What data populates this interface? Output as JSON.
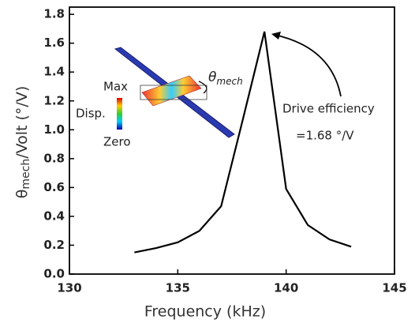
{
  "chart_data": {
    "type": "line",
    "x_label": "Frequency (kHz)",
    "y_label": {
      "symbol": "θ",
      "sub": "mech",
      "rest": "/Volt (°/V)"
    },
    "x": [
      133,
      134,
      135,
      136,
      137,
      138,
      139,
      140,
      141,
      142,
      143
    ],
    "series": [
      {
        "color": "#000000",
        "values": [
          0.15,
          0.18,
          0.22,
          0.3,
          0.47,
          1.07,
          1.68,
          0.59,
          0.34,
          0.24,
          0.19
        ]
      }
    ],
    "xlim": [
      130,
      145
    ],
    "xticks": [
      130,
      135,
      140,
      145
    ],
    "ylim": [
      0,
      1.85
    ],
    "yticks": [
      {
        "value": 0,
        "label": "0.0"
      },
      0.2,
      0.4,
      0.6,
      0.8,
      {
        "value": 1,
        "label": "1.0"
      },
      1.2,
      1.4,
      1.6,
      1.8
    ],
    "annotations": {
      "drive": "Drive efficiency",
      "eff": "=1.68 °/V",
      "max": "Max",
      "disp": "Disp.",
      "zero": "Zero",
      "theta": "θ",
      "theta_sub": "mech"
    }
  }
}
